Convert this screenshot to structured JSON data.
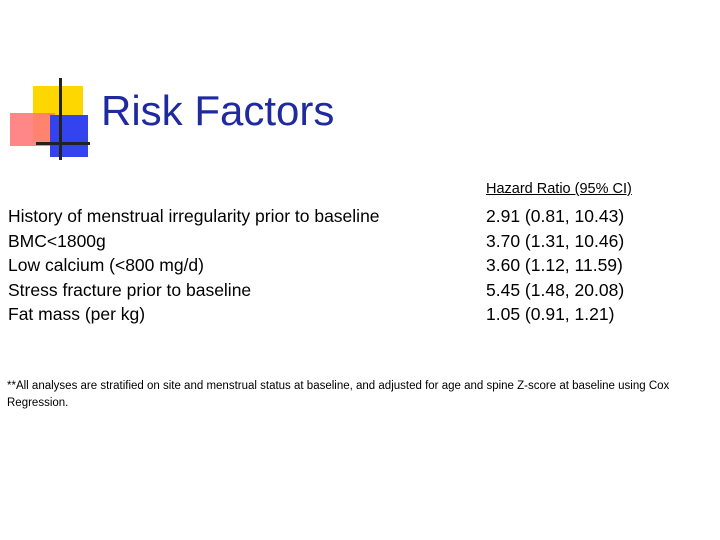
{
  "slide": {
    "title": "Risk Factors",
    "column_header": "Hazard Ratio (95% CI)",
    "rows": [
      {
        "factor": "History of menstrual irregularity prior to baseline",
        "hazard_ratio": "2.91 (0.81, 10.43)"
      },
      {
        "factor": "BMC<1800g",
        "hazard_ratio": "3.70 (1.31, 10.46)"
      },
      {
        "factor": "Low calcium (<800 mg/d)",
        "hazard_ratio": "3.60 (1.12, 11.59)"
      },
      {
        "factor": "Stress fracture prior to baseline",
        "hazard_ratio": "5.45 (1.48, 20.08)"
      },
      {
        "factor": "Fat mass (per kg)",
        "hazard_ratio": "1.05 (0.91, 1.21)"
      }
    ],
    "footnote": "**All analyses are stratified on site and menstrual status at baseline, and adjusted for age and spine Z-score at baseline using Cox Regression."
  },
  "colors": {
    "title": "#1f2a9e",
    "logo_yellow": "#ffd700",
    "logo_red": "#ff7a7a",
    "logo_blue": "#3344ee"
  }
}
